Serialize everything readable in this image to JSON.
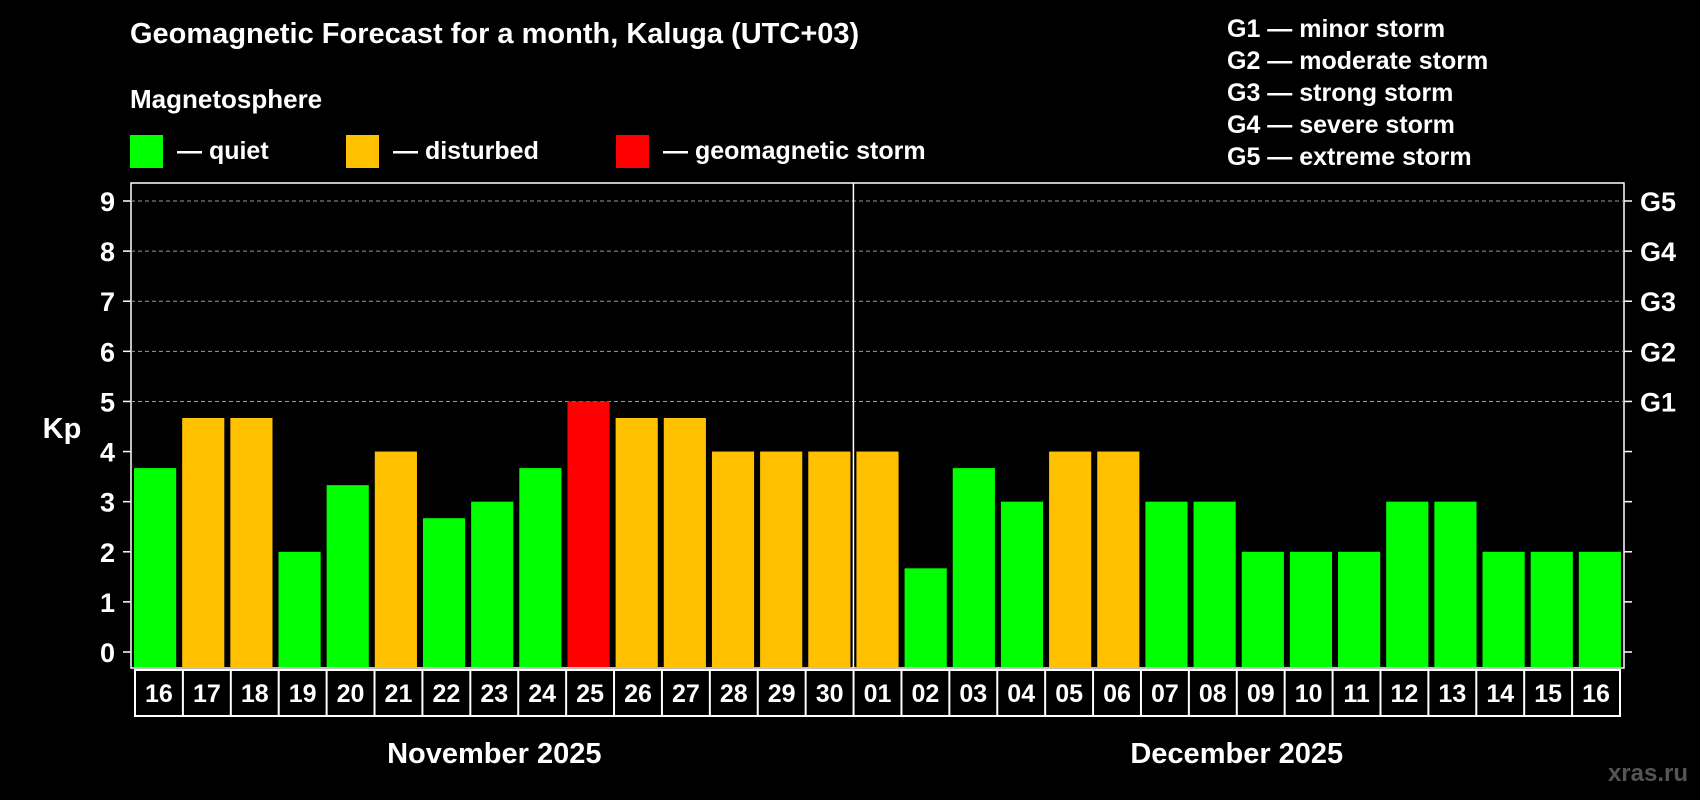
{
  "title": "Geomagnetic Forecast for a month, Kaluga (UTC+03)",
  "subtitle": "Magnetosphere",
  "legend": [
    {
      "label": "— quiet",
      "color": "#00ff00"
    },
    {
      "label": "— disturbed",
      "color": "#ffc000"
    },
    {
      "label": "— geomagnetic storm",
      "color": "#ff0000"
    }
  ],
  "storm_scale": [
    "G1 — minor storm",
    "G2 — moderate storm",
    "G3 — strong storm",
    "G4 — severe storm",
    "G5 — extreme storm"
  ],
  "watermark": "xras.ru",
  "colors": {
    "quiet": "#00ff00",
    "disturbed": "#ffc000",
    "storm": "#ff0000",
    "background": "#000000"
  },
  "chart_data": {
    "type": "bar",
    "ylabel": "Kp",
    "ylim": [
      0,
      9
    ],
    "yticks": [
      0,
      1,
      2,
      3,
      4,
      5,
      6,
      7,
      8,
      9
    ],
    "right_axis_labels": [
      {
        "kp": 5,
        "label": "G1"
      },
      {
        "kp": 6,
        "label": "G2"
      },
      {
        "kp": 7,
        "label": "G3"
      },
      {
        "kp": 8,
        "label": "G4"
      },
      {
        "kp": 9,
        "label": "G5"
      }
    ],
    "grid": "dashed horizontal at Kp 5-9",
    "categories": [
      "16",
      "17",
      "18",
      "19",
      "20",
      "21",
      "22",
      "23",
      "24",
      "25",
      "26",
      "27",
      "28",
      "29",
      "30",
      "01",
      "02",
      "03",
      "04",
      "05",
      "06",
      "07",
      "08",
      "09",
      "10",
      "11",
      "12",
      "13",
      "14",
      "15",
      "16"
    ],
    "values": [
      3.67,
      4.67,
      4.67,
      2,
      3.33,
      4,
      2.67,
      3,
      3.67,
      5,
      4.67,
      4.67,
      4,
      4,
      4,
      4,
      1.67,
      3.67,
      3,
      4,
      4,
      3,
      3,
      2,
      2,
      2,
      3,
      3,
      2,
      2,
      2
    ],
    "status": [
      "quiet",
      "disturbed",
      "disturbed",
      "quiet",
      "quiet",
      "disturbed",
      "quiet",
      "quiet",
      "quiet",
      "storm",
      "disturbed",
      "disturbed",
      "disturbed",
      "disturbed",
      "disturbed",
      "disturbed",
      "quiet",
      "quiet",
      "quiet",
      "disturbed",
      "disturbed",
      "quiet",
      "quiet",
      "quiet",
      "quiet",
      "quiet",
      "quiet",
      "quiet",
      "quiet",
      "quiet",
      "quiet"
    ],
    "months": [
      {
        "label": "November 2025",
        "start_index": 0,
        "end_index": 14
      },
      {
        "label": "December 2025",
        "start_index": 15,
        "end_index": 30
      }
    ],
    "month_divider_after_index": 14
  }
}
